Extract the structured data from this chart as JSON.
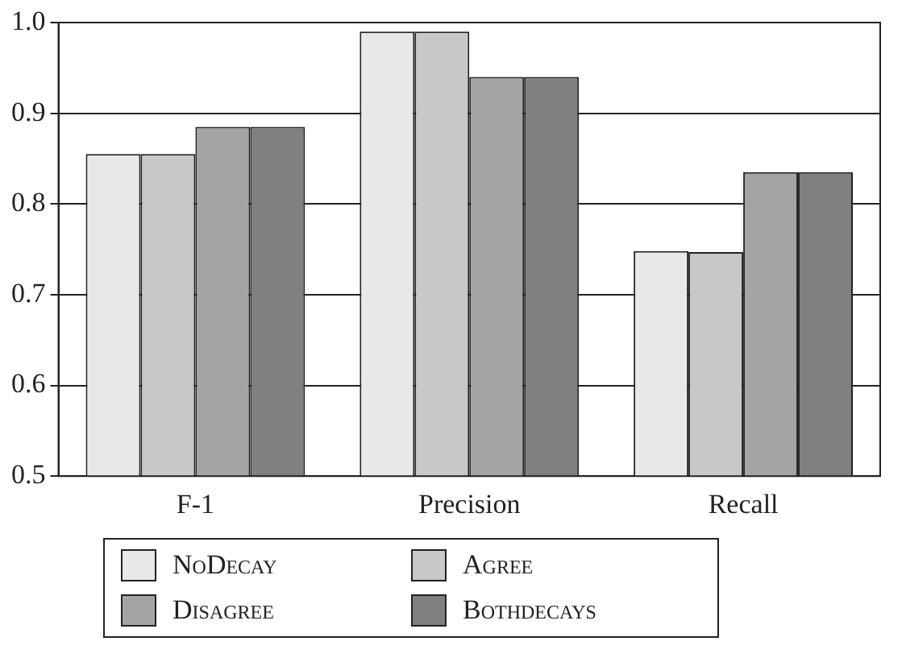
{
  "chart_data": {
    "type": "bar",
    "categories": [
      "F-1",
      "Precision",
      "Recall"
    ],
    "series": [
      {
        "name": "NoDecay",
        "color": "#e8e8e8",
        "values": [
          0.855,
          0.99,
          0.748
        ]
      },
      {
        "name": "Agree",
        "color": "#c8c8c8",
        "values": [
          0.855,
          0.99,
          0.747
        ]
      },
      {
        "name": "Disagree",
        "color": "#a4a4a4",
        "values": [
          0.885,
          0.94,
          0.835
        ]
      },
      {
        "name": "Bothdecays",
        "color": "#808080",
        "values": [
          0.885,
          0.94,
          0.835
        ]
      }
    ],
    "ylim": [
      0.5,
      1.0
    ],
    "yticks": [
      {
        "value": 0.5,
        "label": "0.5"
      },
      {
        "value": 0.6,
        "label": "0.6"
      },
      {
        "value": 0.7,
        "label": "0.7"
      },
      {
        "value": 0.8,
        "label": "0.8"
      },
      {
        "value": 0.9,
        "label": "0.9"
      },
      {
        "value": 1.0,
        "label": "1.0"
      }
    ],
    "grid": "y",
    "legend": "bottom"
  }
}
